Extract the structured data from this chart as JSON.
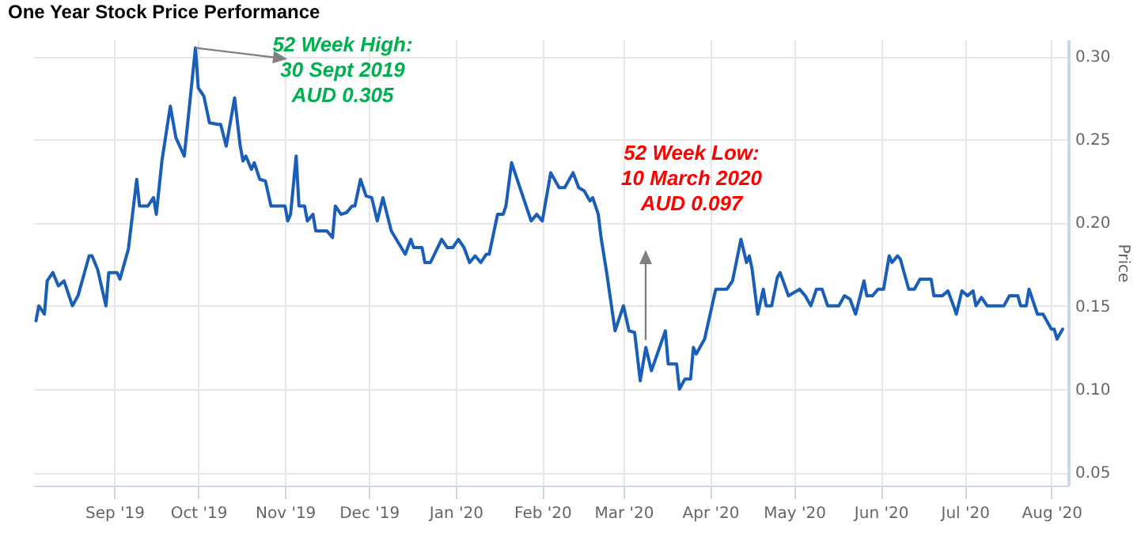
{
  "chart_data": {
    "type": "line",
    "title": "One Year Stock Price Performance",
    "ylabel": "Price",
    "x": [
      "2019-08-04",
      "2019-08-05",
      "2019-08-07",
      "2019-08-08",
      "2019-08-10",
      "2019-08-12",
      "2019-08-14",
      "2019-08-17",
      "2019-08-19",
      "2019-08-23",
      "2019-08-24",
      "2019-08-26",
      "2019-08-29",
      "2019-08-30",
      "2019-09-02",
      "2019-09-03",
      "2019-09-06",
      "2019-09-09",
      "2019-09-10",
      "2019-09-13",
      "2019-09-15",
      "2019-09-16",
      "2019-09-18",
      "2019-09-21",
      "2019-09-23",
      "2019-09-26",
      "2019-09-30",
      "2019-10-01",
      "2019-10-03",
      "2019-10-05",
      "2019-10-08",
      "2019-10-09",
      "2019-10-11",
      "2019-10-14",
      "2019-10-16",
      "2019-10-17",
      "2019-10-18",
      "2019-10-20",
      "2019-10-21",
      "2019-10-23",
      "2019-10-25",
      "2019-10-27",
      "2019-11-01",
      "2019-11-02",
      "2019-11-03",
      "2019-11-05",
      "2019-11-06",
      "2019-11-08",
      "2019-11-09",
      "2019-11-11",
      "2019-11-12",
      "2019-11-16",
      "2019-11-18",
      "2019-11-19",
      "2019-11-21",
      "2019-11-23",
      "2019-11-25",
      "2019-11-26",
      "2019-11-28",
      "2019-11-30",
      "2019-12-02",
      "2019-12-04",
      "2019-12-06",
      "2019-12-09",
      "2019-12-14",
      "2019-12-16",
      "2019-12-17",
      "2019-12-20",
      "2019-12-21",
      "2019-12-23",
      "2019-12-27",
      "2019-12-29",
      "2019-12-31",
      "2020-01-02",
      "2020-01-04",
      "2020-01-06",
      "2020-01-08",
      "2020-01-10",
      "2020-01-12",
      "2020-01-13",
      "2020-01-16",
      "2020-01-18",
      "2020-01-19",
      "2020-01-21",
      "2020-01-24",
      "2020-01-26",
      "2020-01-28",
      "2020-01-30",
      "2020-02-01",
      "2020-02-04",
      "2020-02-07",
      "2020-02-09",
      "2020-02-12",
      "2020-02-14",
      "2020-02-16",
      "2020-02-18",
      "2020-02-19",
      "2020-02-21",
      "2020-02-22",
      "2020-02-24",
      "2020-02-27",
      "2020-03-01",
      "2020-03-03",
      "2020-03-05",
      "2020-03-07",
      "2020-03-09",
      "2020-03-11",
      "2020-03-16",
      "2020-03-17",
      "2020-03-20",
      "2020-03-21",
      "2020-03-23",
      "2020-03-25",
      "2020-03-26",
      "2020-03-27",
      "2020-03-30",
      "2020-04-01",
      "2020-04-03",
      "2020-04-07",
      "2020-04-09",
      "2020-04-12",
      "2020-04-14",
      "2020-04-15",
      "2020-04-16",
      "2020-04-18",
      "2020-04-20",
      "2020-04-21",
      "2020-04-23",
      "2020-04-25",
      "2020-04-26",
      "2020-04-29",
      "2020-05-03",
      "2020-05-05",
      "2020-05-07",
      "2020-05-09",
      "2020-05-11",
      "2020-05-13",
      "2020-05-17",
      "2020-05-19",
      "2020-05-21",
      "2020-05-23",
      "2020-05-26",
      "2020-05-27",
      "2020-05-29",
      "2020-05-31",
      "2020-06-02",
      "2020-06-04",
      "2020-06-05",
      "2020-06-07",
      "2020-06-08",
      "2020-06-11",
      "2020-06-13",
      "2020-06-15",
      "2020-06-19",
      "2020-06-20",
      "2020-06-23",
      "2020-06-25",
      "2020-06-27",
      "2020-06-28",
      "2020-06-30",
      "2020-07-02",
      "2020-07-04",
      "2020-07-05",
      "2020-07-07",
      "2020-07-09",
      "2020-07-15",
      "2020-07-17",
      "2020-07-20",
      "2020-07-21",
      "2020-07-23",
      "2020-07-24",
      "2020-07-27",
      "2020-07-29",
      "2020-08-01",
      "2020-08-02",
      "2020-08-03",
      "2020-08-05"
    ],
    "series": [
      {
        "color": "#1a5eb8",
        "values": [
          0.141,
          0.15,
          0.145,
          0.165,
          0.17,
          0.162,
          0.165,
          0.15,
          0.156,
          0.18,
          0.18,
          0.172,
          0.15,
          0.17,
          0.17,
          0.166,
          0.184,
          0.226,
          0.21,
          0.21,
          0.215,
          0.205,
          0.237,
          0.27,
          0.251,
          0.24,
          0.305,
          0.281,
          0.276,
          0.26,
          0.259,
          0.259,
          0.246,
          0.275,
          0.246,
          0.237,
          0.24,
          0.232,
          0.236,
          0.226,
          0.225,
          0.21,
          0.21,
          0.201,
          0.205,
          0.24,
          0.21,
          0.21,
          0.201,
          0.205,
          0.195,
          0.195,
          0.191,
          0.21,
          0.205,
          0.206,
          0.21,
          0.21,
          0.226,
          0.216,
          0.215,
          0.201,
          0.215,
          0.195,
          0.181,
          0.19,
          0.185,
          0.185,
          0.176,
          0.176,
          0.19,
          0.185,
          0.185,
          0.19,
          0.185,
          0.176,
          0.18,
          0.176,
          0.181,
          0.181,
          0.205,
          0.205,
          0.21,
          0.236,
          0.221,
          0.211,
          0.201,
          0.205,
          0.201,
          0.23,
          0.221,
          0.221,
          0.23,
          0.221,
          0.219,
          0.213,
          0.215,
          0.205,
          0.191,
          0.17,
          0.135,
          0.15,
          0.135,
          0.134,
          0.105,
          0.125,
          0.111,
          0.135,
          0.115,
          0.115,
          0.1,
          0.106,
          0.106,
          0.125,
          0.121,
          0.13,
          0.145,
          0.16,
          0.16,
          0.165,
          0.19,
          0.176,
          0.18,
          0.172,
          0.145,
          0.16,
          0.15,
          0.15,
          0.167,
          0.17,
          0.156,
          0.16,
          0.156,
          0.15,
          0.16,
          0.16,
          0.15,
          0.15,
          0.156,
          0.154,
          0.145,
          0.165,
          0.156,
          0.156,
          0.16,
          0.16,
          0.18,
          0.176,
          0.18,
          0.178,
          0.16,
          0.16,
          0.166,
          0.166,
          0.156,
          0.156,
          0.159,
          0.15,
          0.145,
          0.159,
          0.156,
          0.159,
          0.15,
          0.155,
          0.15,
          0.15,
          0.156,
          0.156,
          0.15,
          0.15,
          0.16,
          0.145,
          0.145,
          0.136,
          0.136,
          0.13,
          0.136
        ]
      }
    ],
    "xlim": [
      "2019-08-03",
      "2020-08-07"
    ],
    "xticks": [
      {
        "value": "2019-09-01",
        "label": "Sep '19"
      },
      {
        "value": "2019-10-01",
        "label": "Oct '19"
      },
      {
        "value": "2019-11-01",
        "label": "Nov '19"
      },
      {
        "value": "2019-12-01",
        "label": "Dec '19"
      },
      {
        "value": "2020-01-01",
        "label": "Jan '20"
      },
      {
        "value": "2020-02-01",
        "label": "Feb '20"
      },
      {
        "value": "2020-03-01",
        "label": "Mar '20"
      },
      {
        "value": "2020-04-01",
        "label": "Apr '20"
      },
      {
        "value": "2020-05-01",
        "label": "May '20"
      },
      {
        "value": "2020-06-01",
        "label": "Jun '20"
      },
      {
        "value": "2020-07-01",
        "label": "Jul '20"
      },
      {
        "value": "2020-08-01",
        "label": "Aug '20"
      }
    ],
    "ylim": [
      0.042,
      0.31
    ],
    "yticks": [
      {
        "value": 0.05,
        "label": "0.05"
      },
      {
        "value": 0.1,
        "label": "0.10"
      },
      {
        "value": 0.15,
        "label": "0.15"
      },
      {
        "value": 0.2,
        "label": "0.20"
      },
      {
        "value": 0.25,
        "label": "0.25"
      },
      {
        "value": 0.3,
        "label": "0.30"
      }
    ],
    "grid": true,
    "annotations": [
      {
        "text": "52 Week High:\n30 Sept 2019\nAUD 0.305",
        "x": "2019-09-30",
        "y": 0.305
      },
      "52 Week Low:\n10 March 2020\nAUD 0.097"
    ]
  }
}
